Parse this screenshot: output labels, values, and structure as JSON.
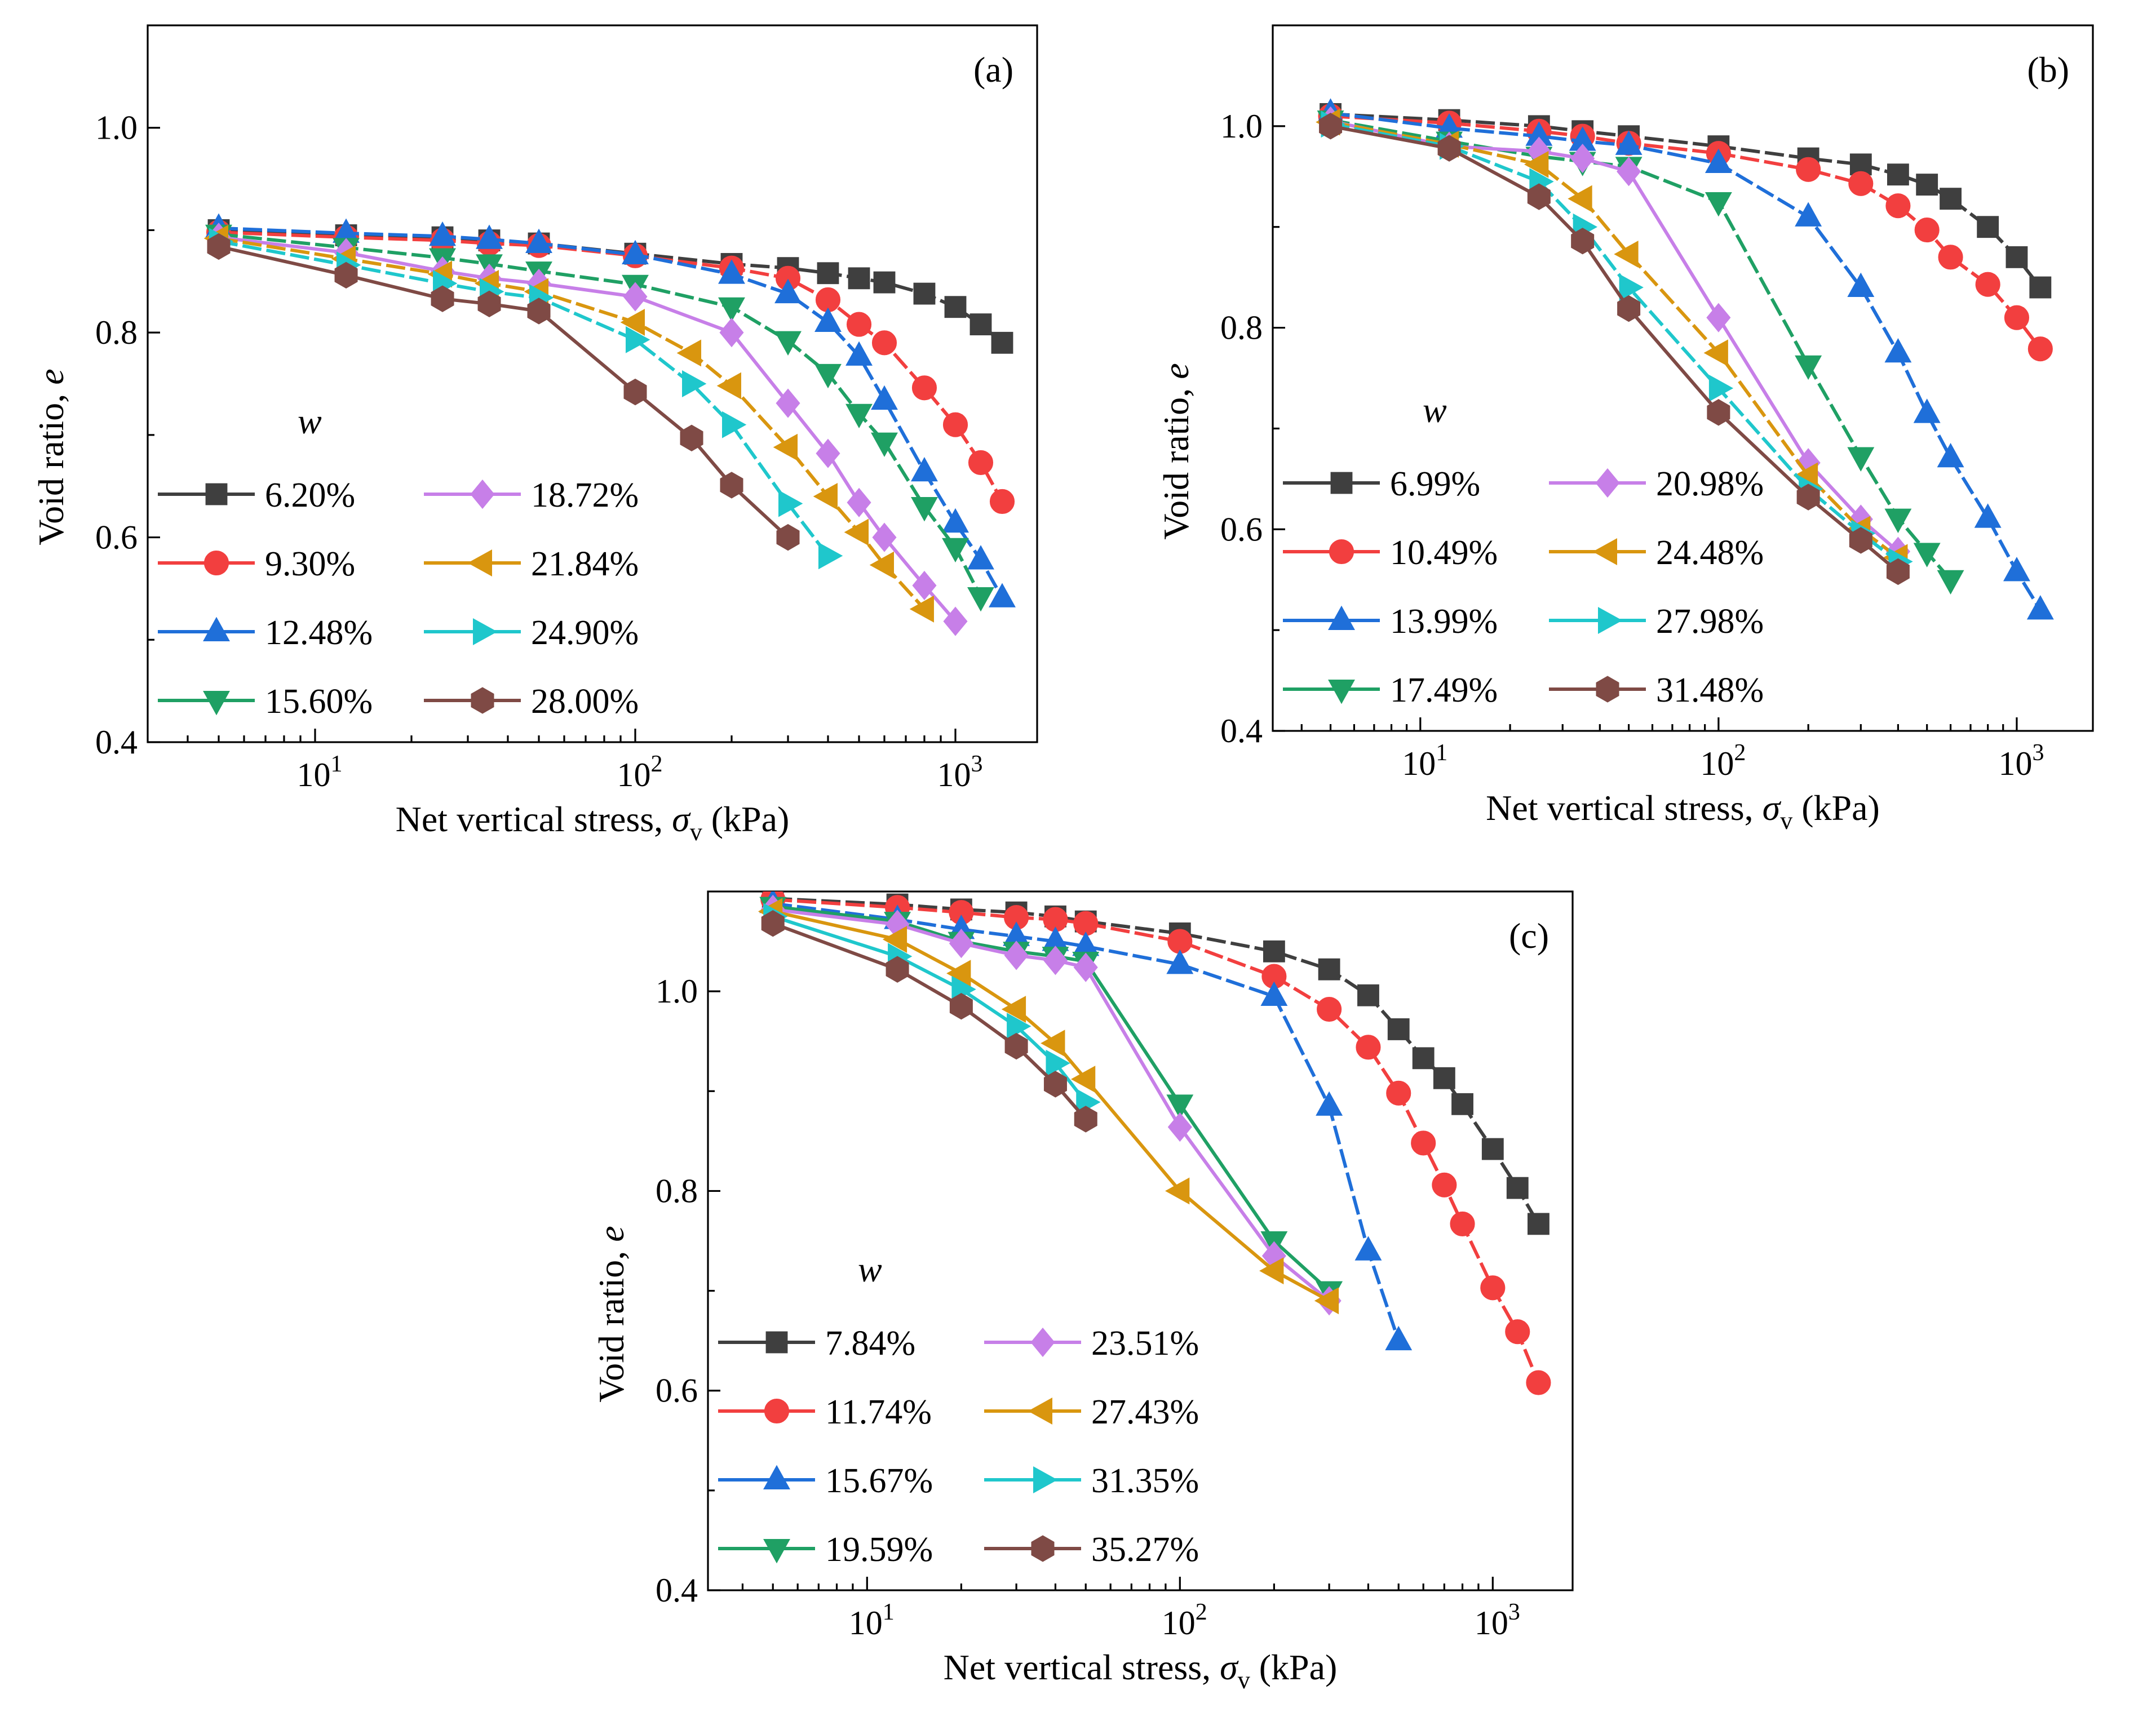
{
  "figure": "Void ratio versus net vertical stress for specimens at various water contents",
  "chart_data": [
    {
      "type": "line",
      "panel_label": "(a)",
      "title": "",
      "xlabel": "Net vertical stress, σv (kPa)",
      "xlabel_main": "Net vertical stress, ",
      "xlabel_symbol": "σ",
      "xlabel_sub": "v",
      "xlabel_unit": " (kPa)",
      "ylabel": "Void ratio, e",
      "ylabel_main": "Void ratio, ",
      "ylabel_symbol": "e",
      "xscale": "log",
      "xlim": [
        3,
        1800
      ],
      "ylim": [
        0.4,
        1.1
      ],
      "yticks": [
        0.4,
        0.6,
        0.8,
        1.0
      ],
      "ytick_labels": [
        "0.4",
        "0.6",
        "0.8",
        "1.0"
      ],
      "xticks": [
        10,
        100,
        1000
      ],
      "xtick_labels": [
        "1",
        "2",
        "3"
      ],
      "xtick_base": "10",
      "legend_title": "w",
      "legend_position": "lower-left",
      "series": [
        {
          "name": "6.20%",
          "color": "#3f3f3f",
          "marker": "square",
          "dash": "dash",
          "x": [
            5,
            12.5,
            25,
            35,
            50,
            100,
            200,
            300,
            400,
            500,
            600,
            800,
            1000,
            1200,
            1400
          ],
          "y": [
            0.9,
            0.895,
            0.893,
            0.89,
            0.887,
            0.877,
            0.867,
            0.863,
            0.858,
            0.853,
            0.849,
            0.838,
            0.825,
            0.808,
            0.79
          ]
        },
        {
          "name": "9.30%",
          "color": "#f23f3f",
          "marker": "circle",
          "dash": "dash",
          "x": [
            5,
            12.5,
            25,
            35,
            50,
            100,
            200,
            300,
            400,
            500,
            600,
            800,
            1000,
            1200,
            1400
          ],
          "y": [
            0.898,
            0.893,
            0.89,
            0.887,
            0.885,
            0.875,
            0.863,
            0.853,
            0.832,
            0.808,
            0.79,
            0.746,
            0.71,
            0.673,
            0.635
          ]
        },
        {
          "name": "12.48%",
          "color": "#1f6fd9",
          "marker": "triangle-up",
          "dash": "dash",
          "x": [
            5,
            12.5,
            25,
            35,
            50,
            100,
            200,
            300,
            400,
            500,
            600,
            800,
            1000,
            1200,
            1400
          ],
          "y": [
            0.902,
            0.897,
            0.894,
            0.891,
            0.887,
            0.876,
            0.857,
            0.838,
            0.81,
            0.777,
            0.734,
            0.664,
            0.614,
            0.578,
            0.541
          ]
        },
        {
          "name": "15.60%",
          "color": "#1fa064",
          "marker": "triangle-down",
          "dash": "dash",
          "x": [
            5,
            12.5,
            25,
            35,
            50,
            100,
            200,
            300,
            400,
            500,
            600,
            800,
            1000,
            1200
          ],
          "y": [
            0.896,
            0.883,
            0.873,
            0.867,
            0.86,
            0.847,
            0.825,
            0.792,
            0.76,
            0.721,
            0.693,
            0.63,
            0.59,
            0.542
          ]
        },
        {
          "name": "18.72%",
          "color": "#c77fe8",
          "marker": "diamond",
          "dash": "solid",
          "x": [
            5,
            12.5,
            25,
            35,
            50,
            100,
            200,
            300,
            400,
            500,
            600,
            800,
            1000
          ],
          "y": [
            0.893,
            0.878,
            0.86,
            0.853,
            0.848,
            0.835,
            0.8,
            0.731,
            0.682,
            0.634,
            0.6,
            0.553,
            0.518
          ]
        },
        {
          "name": "21.84%",
          "color": "#d9960f",
          "marker": "triangle-left",
          "dash": "dash",
          "x": [
            5,
            12.5,
            25,
            35,
            50,
            100,
            150,
            200,
            300,
            400,
            500,
            600,
            800
          ],
          "y": [
            0.892,
            0.872,
            0.857,
            0.848,
            0.84,
            0.81,
            0.78,
            0.748,
            0.688,
            0.64,
            0.605,
            0.573,
            0.53
          ]
        },
        {
          "name": "24.90%",
          "color": "#1fc7cc",
          "marker": "triangle-right",
          "dash": "dash",
          "x": [
            5,
            12.5,
            25,
            35,
            50,
            100,
            150,
            200,
            300,
            400
          ],
          "y": [
            0.889,
            0.866,
            0.848,
            0.84,
            0.834,
            0.793,
            0.75,
            0.71,
            0.633,
            0.582
          ]
        },
        {
          "name": "28.00%",
          "color": "#7f4a45",
          "marker": "hexagon",
          "dash": "solid",
          "x": [
            5,
            12.5,
            25,
            35,
            50,
            100,
            150,
            200,
            300
          ],
          "y": [
            0.884,
            0.856,
            0.833,
            0.828,
            0.821,
            0.742,
            0.697,
            0.651,
            0.6
          ]
        }
      ]
    },
    {
      "type": "line",
      "panel_label": "(b)",
      "title": "",
      "xlabel": "Net vertical stress, σv (kPa)",
      "xlabel_main": "Net vertical stress, ",
      "xlabel_symbol": "σ",
      "xlabel_sub": "v",
      "xlabel_unit": " (kPa)",
      "ylabel": "Void ratio, e",
      "ylabel_main": "Void ratio, ",
      "ylabel_symbol": "e",
      "xscale": "log",
      "xlim": [
        3.2,
        1800
      ],
      "ylim": [
        0.4,
        1.1
      ],
      "yticks": [
        0.4,
        0.6,
        0.8,
        1.0
      ],
      "ytick_labels": [
        "0.4",
        "0.6",
        "0.8",
        "1.0"
      ],
      "xticks": [
        10,
        100,
        1000
      ],
      "xtick_labels": [
        "1",
        "2",
        "3"
      ],
      "xtick_base": "10",
      "legend_title": "w",
      "legend_position": "lower-left",
      "series": [
        {
          "name": "6.99%",
          "color": "#3f3f3f",
          "marker": "square",
          "dash": "dash",
          "x": [
            5,
            12.5,
            25,
            35,
            50,
            100,
            200,
            300,
            400,
            500,
            600,
            800,
            1000,
            1200
          ],
          "y": [
            1.012,
            1.006,
            1.0,
            0.995,
            0.99,
            0.98,
            0.968,
            0.962,
            0.952,
            0.942,
            0.928,
            0.9,
            0.87,
            0.84
          ]
        },
        {
          "name": "10.49%",
          "color": "#f23f3f",
          "marker": "circle",
          "dash": "dash",
          "x": [
            5,
            12.5,
            25,
            35,
            50,
            100,
            200,
            300,
            400,
            500,
            600,
            800,
            1000,
            1200
          ],
          "y": [
            1.01,
            1.003,
            0.995,
            0.99,
            0.983,
            0.973,
            0.957,
            0.943,
            0.921,
            0.897,
            0.87,
            0.843,
            0.81,
            0.779
          ]
        },
        {
          "name": "13.99%",
          "color": "#1f6fd9",
          "marker": "triangle-up",
          "dash": "dash",
          "x": [
            5,
            12.5,
            25,
            35,
            50,
            100,
            200,
            300,
            400,
            500,
            600,
            800,
            1000,
            1200
          ],
          "y": [
            1.013,
            0.998,
            0.99,
            0.985,
            0.981,
            0.963,
            0.91,
            0.84,
            0.775,
            0.715,
            0.671,
            0.611,
            0.558,
            0.52
          ]
        },
        {
          "name": "17.49%",
          "color": "#1fa064",
          "marker": "triangle-down",
          "dash": "dash",
          "x": [
            5,
            12.5,
            25,
            35,
            50,
            100,
            200,
            300,
            400,
            500,
            600
          ],
          "y": [
            1.006,
            0.985,
            0.97,
            0.965,
            0.96,
            0.925,
            0.763,
            0.672,
            0.611,
            0.577,
            0.55
          ]
        },
        {
          "name": "20.98%",
          "color": "#c77fe8",
          "marker": "diamond",
          "dash": "solid",
          "x": [
            5,
            12.5,
            25,
            35,
            50,
            100,
            200,
            300,
            400
          ],
          "y": [
            1.005,
            0.98,
            0.975,
            0.968,
            0.955,
            0.81,
            0.666,
            0.61,
            0.578
          ]
        },
        {
          "name": "24.48%",
          "color": "#d9960f",
          "marker": "triangle-left",
          "dash": "dash",
          "x": [
            5,
            12.5,
            25,
            35,
            50,
            100,
            200,
            300,
            400
          ],
          "y": [
            1.004,
            0.982,
            0.962,
            0.928,
            0.873,
            0.775,
            0.653,
            0.6,
            0.572
          ]
        },
        {
          "name": "27.98%",
          "color": "#1fc7cc",
          "marker": "triangle-right",
          "dash": "dash",
          "x": [
            5,
            12.5,
            25,
            35,
            50,
            100,
            200,
            300,
            400
          ],
          "y": [
            1.002,
            0.98,
            0.945,
            0.9,
            0.84,
            0.74,
            0.64,
            0.596,
            0.568
          ]
        },
        {
          "name": "31.48%",
          "color": "#7f4a45",
          "marker": "hexagon",
          "dash": "solid",
          "x": [
            5,
            12.5,
            25,
            35,
            50,
            100,
            200,
            300,
            400
          ],
          "y": [
            1.0,
            0.978,
            0.93,
            0.886,
            0.819,
            0.716,
            0.632,
            0.589,
            0.558
          ]
        }
      ]
    },
    {
      "type": "line",
      "panel_label": "(c)",
      "title": "",
      "xlabel": "Net vertical stress, σv (kPa)",
      "xlabel_main": "Net vertical stress, ",
      "xlabel_symbol": "σ",
      "xlabel_sub": "v",
      "xlabel_unit": " (kPa)",
      "ylabel": "Void ratio, e",
      "ylabel_main": "Void ratio, ",
      "ylabel_symbol": "e",
      "xscale": "log",
      "xlim": [
        3.1,
        1800
      ],
      "ylim": [
        0.4,
        1.1
      ],
      "yticks": [
        0.4,
        0.6,
        0.8,
        1.0
      ],
      "ytick_labels": [
        "0.4",
        "0.6",
        "0.8",
        "1.0"
      ],
      "xticks": [
        10,
        100,
        1000
      ],
      "xtick_labels": [
        "1",
        "2",
        "3"
      ],
      "xtick_base": "10",
      "legend_title": "w",
      "legend_position": "lower-left",
      "series": [
        {
          "name": "7.84%",
          "color": "#3f3f3f",
          "marker": "square",
          "dash": "dash",
          "x": [
            5,
            12.5,
            20,
            30,
            40,
            50,
            100,
            200,
            300,
            400,
            500,
            600,
            700,
            800,
            1000,
            1200,
            1400
          ],
          "y": [
            1.093,
            1.087,
            1.082,
            1.079,
            1.075,
            1.07,
            1.058,
            1.04,
            1.022,
            0.996,
            0.962,
            0.933,
            0.913,
            0.887,
            0.842,
            0.803,
            0.767
          ]
        },
        {
          "name": "11.74%",
          "color": "#f23f3f",
          "marker": "circle",
          "dash": "dash",
          "x": [
            5,
            12.5,
            20,
            30,
            40,
            50,
            100,
            200,
            300,
            400,
            500,
            600,
            700,
            800,
            1000,
            1200,
            1400
          ],
          "y": [
            1.092,
            1.084,
            1.079,
            1.074,
            1.072,
            1.068,
            1.05,
            1.015,
            0.982,
            0.944,
            0.898,
            0.848,
            0.806,
            0.767,
            0.703,
            0.659,
            0.608
          ]
        },
        {
          "name": "15.67%",
          "color": "#1f6fd9",
          "marker": "triangle-up",
          "dash": "dash",
          "x": [
            5,
            12.5,
            20,
            30,
            40,
            50,
            100,
            200,
            300,
            400,
            500
          ],
          "y": [
            1.088,
            1.072,
            1.062,
            1.055,
            1.05,
            1.045,
            1.027,
            0.995,
            0.885,
            0.74,
            0.65
          ]
        },
        {
          "name": "19.59%",
          "color": "#1fa064",
          "marker": "triangle-down",
          "dash": "solid",
          "x": [
            5,
            12.5,
            20,
            30,
            40,
            50,
            100,
            200,
            300
          ],
          "y": [
            1.085,
            1.07,
            1.05,
            1.04,
            1.035,
            1.03,
            0.887,
            0.75,
            0.7
          ]
        },
        {
          "name": "23.51%",
          "color": "#c77fe8",
          "marker": "diamond",
          "dash": "solid",
          "x": [
            5,
            12.5,
            20,
            30,
            40,
            50,
            100,
            200,
            300
          ],
          "y": [
            1.082,
            1.067,
            1.048,
            1.036,
            1.031,
            1.024,
            0.864,
            0.735,
            0.69
          ]
        },
        {
          "name": "27.43%",
          "color": "#d9960f",
          "marker": "triangle-left",
          "dash": "solid",
          "x": [
            5,
            12.5,
            20,
            30,
            40,
            50,
            100,
            200,
            300
          ],
          "y": [
            1.08,
            1.052,
            1.018,
            0.982,
            0.948,
            0.912,
            0.8,
            0.72,
            0.69
          ]
        },
        {
          "name": "31.35%",
          "color": "#1fc7cc",
          "marker": "triangle-right",
          "dash": "solid",
          "x": [
            5,
            12.5,
            20,
            30,
            40,
            50
          ],
          "y": [
            1.075,
            1.035,
            1.002,
            0.965,
            0.928,
            0.889
          ]
        },
        {
          "name": "35.27%",
          "color": "#7f4a45",
          "marker": "hexagon",
          "dash": "solid",
          "x": [
            5,
            12.5,
            20,
            30,
            40,
            50
          ],
          "y": [
            1.068,
            1.022,
            0.985,
            0.945,
            0.907,
            0.872
          ]
        }
      ]
    }
  ]
}
